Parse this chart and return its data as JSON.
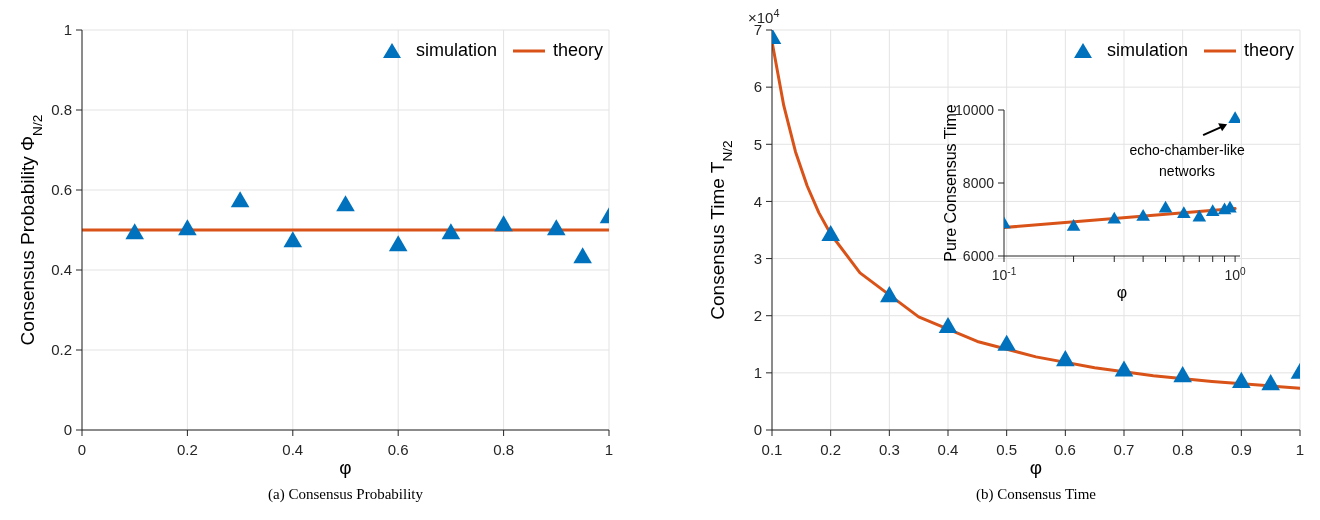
{
  "chart_data": [
    {
      "type": "scatter",
      "title": "(a) Consensus Probability",
      "xlabel": "φ",
      "ylabel": "Consensus Probability Φ$_{N/2}$",
      "xlim": [
        0,
        1
      ],
      "xticks": [
        0,
        0.2,
        0.4,
        0.6,
        0.8,
        1
      ],
      "ylim": [
        0,
        1
      ],
      "yticks": [
        0,
        0.2,
        0.4,
        0.6,
        0.8,
        1
      ],
      "grid": true,
      "legend": "top right",
      "line_style": "solid",
      "series": [
        {
          "name": "simulation",
          "marker": "triangle",
          "color": "#0072bd",
          "x": [
            0.1,
            0.2,
            0.3,
            0.4,
            0.5,
            0.6,
            0.7,
            0.8,
            0.9,
            0.95,
            1
          ],
          "values": [
            0.49,
            0.5,
            0.57,
            0.47,
            0.56,
            0.46,
            0.49,
            0.51,
            0.5,
            0.43,
            0.53
          ]
        },
        {
          "name": "theory",
          "type": "line",
          "color": "#d95319",
          "x": [
            0,
            1
          ],
          "values": [
            0.5,
            0.5
          ]
        }
      ]
    },
    {
      "type": "scatter",
      "title": "(b) Consensus Time",
      "xlabel": "φ",
      "ylabel": "Consensus Time T$_{N/2}$",
      "xlim": [
        0.1,
        1
      ],
      "xticks": [
        0.1,
        0.2,
        0.3,
        0.4,
        0.5,
        0.6,
        0.7,
        0.8,
        0.9,
        1
      ],
      "ylim": [
        0,
        7
      ],
      "yticks": [
        0,
        1,
        2,
        3,
        4,
        5,
        6,
        7
      ],
      "grid": true,
      "legend": "top right",
      "line_style": "solid",
      "annotations": [
        "×10$^{4}$"
      ],
      "series": [
        {
          "name": "simulation",
          "marker": "triangle",
          "color": "#0072bd",
          "x": [
            0.1,
            0.2,
            0.3,
            0.4,
            0.5,
            0.6,
            0.7,
            0.8,
            0.9,
            0.95,
            1
          ],
          "values": [
            6.85,
            3.4,
            2.33,
            1.79,
            1.48,
            1.21,
            1.03,
            0.93,
            0.83,
            0.79,
            0.99
          ]
        },
        {
          "name": "theory",
          "type": "line",
          "color": "#d95319",
          "x": [
            0.1,
            0.12,
            0.14,
            0.16,
            0.18,
            0.2,
            0.25,
            0.35,
            0.45,
            0.55,
            0.65,
            0.75,
            0.85,
            1
          ],
          "values": [
            6.8,
            5.68,
            4.87,
            4.27,
            3.8,
            3.43,
            2.75,
            1.98,
            1.55,
            1.28,
            1.09,
            0.95,
            0.85,
            0.73
          ]
        }
      ]
    },
    {
      "type": "scatter",
      "xlabel": "φ",
      "ylabel": "Pure Consensus Time",
      "log": "x",
      "xlim": [
        0.1,
        1.05
      ],
      "xticks": [
        {
          "value": 0.1,
          "label": "10$^{-1}$"
        },
        {
          "value": 0.2,
          "label": null
        },
        {
          "value": 0.3,
          "label": null
        },
        {
          "value": 0.4,
          "label": null
        },
        {
          "value": 0.5,
          "label": null
        },
        {
          "value": 0.6,
          "label": null
        },
        {
          "value": 0.7,
          "label": null
        },
        {
          "value": 0.8,
          "label": null
        },
        {
          "value": 0.9,
          "label": null
        },
        {
          "value": 1,
          "label": "10$^{0}$"
        }
      ],
      "ylim": [
        6000,
        10000
      ],
      "yticks": [
        6000,
        8000,
        10000
      ],
      "line_style": "solid",
      "annotations": [
        {
          "text": "echo-chamber-like networks",
          "x": 1,
          "y": 9750
        }
      ],
      "series": [
        {
          "marker": "triangle",
          "color": "#0072bd",
          "x": [
            0.1,
            0.2,
            0.3,
            0.4,
            0.5,
            0.6,
            0.7,
            0.8,
            0.9,
            0.95,
            1
          ],
          "values": [
            6870,
            6800,
            7000,
            7070,
            7300,
            7150,
            7050,
            7200,
            7250,
            7300,
            9750
          ]
        },
        {
          "type": "line",
          "color": "#d95319",
          "x": [
            0.1,
            0.3,
            1
          ],
          "values": [
            6780,
            7030,
            7300
          ]
        }
      ]
    }
  ]
}
